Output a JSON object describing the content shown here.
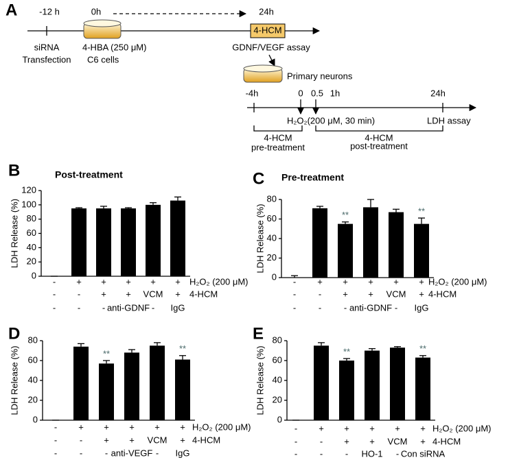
{
  "diagram": {
    "label": "A",
    "top_timeline": {
      "times": [
        "-12  h",
        "0h",
        "24h"
      ],
      "box": "4-HCM",
      "siRNA": "siRNA",
      "transfection": "Transfection",
      "treatment": "4-HBA  (250  μM)",
      "cells": "C6 cells",
      "assay": "GDNF/VEGF assay"
    },
    "primary_neurons": "Primary neurons",
    "bottom_timeline": {
      "times": [
        "-4h",
        "0",
        "0.5",
        "1h",
        "24h"
      ],
      "treatment": "H₂O₂(200  μM, 30 min)",
      "assay": "LDH  assay",
      "pre": [
        "4-HCM",
        "pre-treatment"
      ],
      "post": [
        "4-HCM",
        "post-treatment"
      ]
    }
  },
  "chart_data": [
    {
      "type": "bar",
      "label": "B",
      "title": "Post-treatment",
      "y_label": "LDH Release (%)",
      "color": "#000000",
      "values": [
        0,
        95,
        95,
        95,
        100,
        106
      ],
      "errors": [
        0,
        1,
        3,
        1,
        3,
        5
      ],
      "ylim": [
        0,
        120
      ],
      "yticks": [
        0,
        20,
        40,
        60,
        80,
        100,
        120
      ],
      "conditions": [
        {
          "name": "H₂O₂ (200 μM)",
          "values": [
            "-",
            "+",
            "+",
            "+",
            "+",
            "+"
          ]
        },
        {
          "name": "4-HCM",
          "values": [
            "-",
            "-",
            "+",
            "+",
            "VCM",
            "+"
          ]
        },
        {
          "values": [
            "-",
            "-",
            "-",
            "anti-GDNF",
            "-",
            "IgG"
          ]
        }
      ]
    },
    {
      "type": "bar",
      "label": "C",
      "title": "Pre-treatment",
      "y_label": "LDH Release (%)",
      "color": "#000000",
      "values": [
        0,
        71,
        55,
        72,
        67,
        55
      ],
      "errors": [
        2,
        2,
        2,
        8,
        3,
        6
      ],
      "significance": [
        null,
        null,
        "**",
        null,
        null,
        "**"
      ],
      "ylim": [
        0,
        80
      ],
      "yticks": [
        0,
        20,
        40,
        60,
        80
      ],
      "conditions": [
        {
          "name": "H₂O₂ (200 μM)",
          "values": [
            "-",
            "+",
            "+",
            "+",
            "+",
            "+"
          ]
        },
        {
          "name": "4-HCM",
          "values": [
            "-",
            "-",
            "+",
            "+",
            "VCM",
            "+"
          ]
        },
        {
          "values": [
            "-",
            "-",
            "-",
            "anti-GDNF",
            "-",
            "IgG"
          ]
        }
      ]
    },
    {
      "type": "bar",
      "label": "D",
      "y_label": "LDH Release (%)",
      "color": "#000000",
      "values": [
        0,
        74,
        57,
        68,
        75,
        61
      ],
      "errors": [
        0,
        3,
        3,
        3,
        3,
        4
      ],
      "significance": [
        null,
        null,
        "**",
        null,
        null,
        "**"
      ],
      "ylim": [
        0,
        80
      ],
      "yticks": [
        0,
        20,
        40,
        60,
        80
      ],
      "conditions": [
        {
          "name": "H₂O₂ (200 μM)",
          "values": [
            "-",
            "+",
            "+",
            "+",
            "+",
            "+"
          ]
        },
        {
          "name": "4-HCM",
          "values": [
            "-",
            "-",
            "+",
            "+",
            "VCM",
            "+"
          ]
        },
        {
          "values": [
            "-",
            "-",
            "-",
            "anti-VEGF",
            "-",
            "IgG"
          ]
        }
      ]
    },
    {
      "type": "bar",
      "label": "E",
      "y_label": "LDH Release (%)",
      "color": "#000000",
      "values": [
        0,
        75,
        60,
        70,
        73,
        63
      ],
      "errors": [
        0,
        3,
        2,
        2,
        1,
        2
      ],
      "significance": [
        null,
        null,
        "**",
        null,
        null,
        "**"
      ],
      "ylim": [
        0,
        80
      ],
      "yticks": [
        0,
        20,
        40,
        60,
        80
      ],
      "conditions": [
        {
          "name": "H₂O₂ (200 μM)",
          "values": [
            "-",
            "+",
            "+",
            "+",
            "+",
            "+"
          ]
        },
        {
          "name": "4-HCM",
          "values": [
            "-",
            "-",
            "+",
            "+",
            "VCM",
            "+"
          ]
        },
        {
          "values": [
            "-",
            "-",
            "-",
            "HO-1",
            "-",
            "Con siRNA"
          ]
        }
      ]
    }
  ]
}
